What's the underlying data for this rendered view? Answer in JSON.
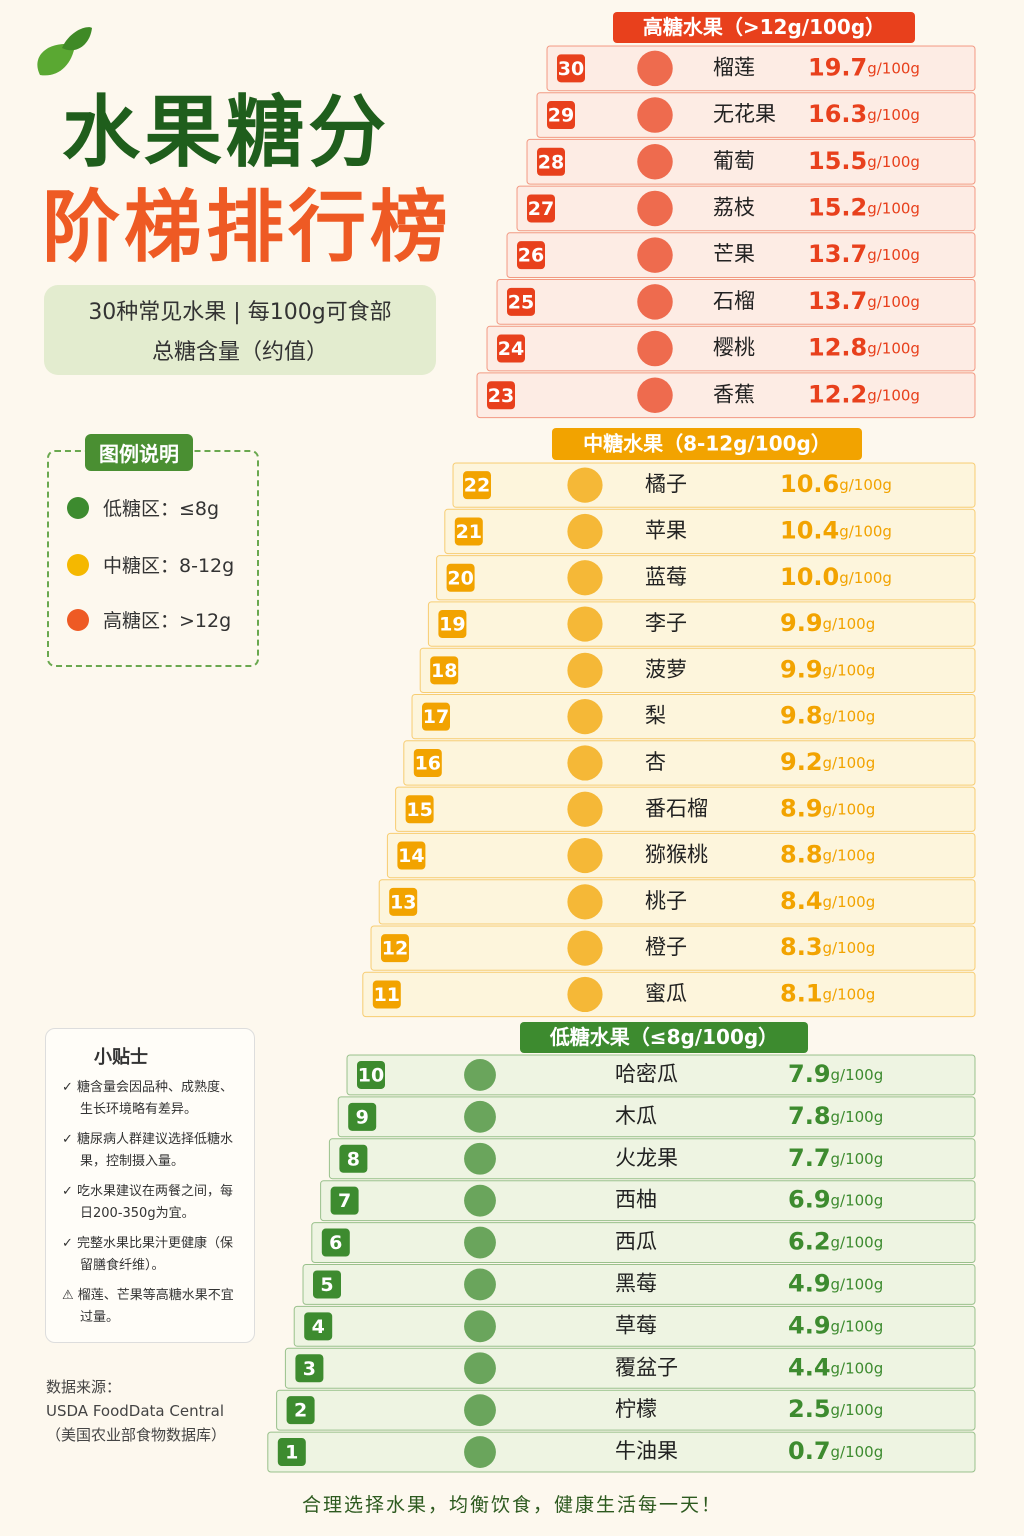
{
  "header": {
    "title": "水果糖分",
    "title2": "阶梯排行榜",
    "subtitle": [
      "30种常见水果 | 每100g可食部",
      "总糖含量（约值）"
    ]
  },
  "legend": {
    "title": "图例说明",
    "items": [
      "低糖区：≤8g",
      "中糖区：8-12g",
      "高糖区：>12g"
    ]
  },
  "unit": "g/100g",
  "tiers": [
    {
      "title": "高糖水果（>12g/100g）",
      "rows": [
        {
          "rank": "30",
          "name": "榴莲",
          "value": "19.7"
        },
        {
          "rank": "29",
          "name": "无花果",
          "value": "16.3"
        },
        {
          "rank": "28",
          "name": "葡萄",
          "value": "15.5"
        },
        {
          "rank": "27",
          "name": "荔枝",
          "value": "15.2"
        },
        {
          "rank": "26",
          "name": "芒果",
          "value": "13.7"
        },
        {
          "rank": "25",
          "name": "石榴",
          "value": "13.7"
        },
        {
          "rank": "24",
          "name": "樱桃",
          "value": "12.8"
        },
        {
          "rank": "23",
          "name": "香蕉",
          "value": "12.2"
        }
      ]
    },
    {
      "title": "中糖水果（8-12g/100g）",
      "rows": [
        {
          "rank": "22",
          "name": "橘子",
          "value": "10.6"
        },
        {
          "rank": "21",
          "name": "苹果",
          "value": "10.4"
        },
        {
          "rank": "20",
          "name": "蓝莓",
          "value": "10.0"
        },
        {
          "rank": "19",
          "name": "李子",
          "value": "9.9"
        },
        {
          "rank": "18",
          "name": "菠萝",
          "value": "9.9"
        },
        {
          "rank": "17",
          "name": "梨",
          "value": "9.8"
        },
        {
          "rank": "16",
          "name": "杏",
          "value": "9.2"
        },
        {
          "rank": "15",
          "name": "番石榴",
          "value": "8.9"
        },
        {
          "rank": "14",
          "name": "猕猴桃",
          "value": "8.8"
        },
        {
          "rank": "13",
          "name": "桃子",
          "value": "8.4"
        },
        {
          "rank": "12",
          "name": "橙子",
          "value": "8.3"
        },
        {
          "rank": "11",
          "name": "蜜瓜",
          "value": "8.1"
        }
      ]
    },
    {
      "title": "低糖水果（≤8g/100g）",
      "rows": [
        {
          "rank": "10",
          "name": "哈密瓜",
          "value": "7.9"
        },
        {
          "rank": "9",
          "name": "木瓜",
          "value": "7.8"
        },
        {
          "rank": "8",
          "name": "火龙果",
          "value": "7.7"
        },
        {
          "rank": "7",
          "name": "西柚",
          "value": "6.9"
        },
        {
          "rank": "6",
          "name": "西瓜",
          "value": "6.2"
        },
        {
          "rank": "5",
          "name": "黑莓",
          "value": "4.9"
        },
        {
          "rank": "4",
          "name": "草莓",
          "value": "4.9"
        },
        {
          "rank": "3",
          "name": "覆盆子",
          "value": "4.4"
        },
        {
          "rank": "2",
          "name": "柠檬",
          "value": "2.5"
        },
        {
          "rank": "1",
          "name": "牛油果",
          "value": "0.7"
        }
      ]
    }
  ],
  "tips": {
    "title": "小贴士",
    "items": [
      "糖含量会因品种、成熟度、生长环境略有差异。",
      "糖尿病人群建议选择低糖水果，控制摄入量。",
      "吃水果建议在两餐之间，每日200-350g为宜。",
      "完整水果比果汁更健康（保留膳食纤维）。",
      "榴莲、芒果等高糖水果不宜过量。"
    ]
  },
  "source": {
    "label": "数据来源：",
    "name": "USDA FoodData Central",
    "note": "（美国农业部食物数据库）"
  },
  "footer": "合理选择水果，均衡饮食，健康生活每一天！"
}
